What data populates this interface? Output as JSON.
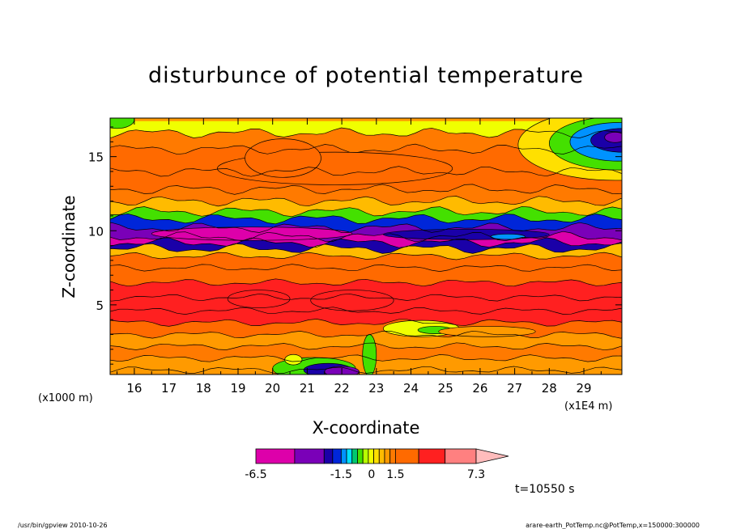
{
  "chart_data": {
    "type": "heatmap",
    "title": "disturbunce of potential temperature",
    "xlabel": "X-coordinate",
    "ylabel": "Z-coordinate",
    "x_unit_label": "(x1E4 m)",
    "y_unit_label": "(x1000 m)",
    "xlim": [
      15.3,
      30.1
    ],
    "ylim": [
      0.3,
      17.6
    ],
    "x_ticks": [
      "16",
      "17",
      "18",
      "19",
      "20",
      "21",
      "22",
      "23",
      "24",
      "25",
      "26",
      "27",
      "28",
      "29"
    ],
    "y_ticks": [
      "5",
      "10",
      "15"
    ],
    "colorbar": {
      "levels": [
        -6.5,
        -5.0,
        -3.5,
        -2.5,
        -1.5,
        -1.2,
        -0.9,
        -0.6,
        -0.3,
        0,
        0.3,
        0.6,
        0.9,
        1.2,
        1.5,
        2.5,
        3.5,
        5.0,
        7.3
      ],
      "colors": [
        "#dd00aa",
        "#7a00b8",
        "#1a00a8",
        "#0026d9",
        "#0092ff",
        "#00e0ff",
        "#00c870",
        "#44e000",
        "#b8ff00",
        "#f0ff00",
        "#ffe000",
        "#ffbb00",
        "#ff9a00",
        "#ff7a00",
        "#ff6a00",
        "#ff2020",
        "#ff8080",
        "#ffbcbc"
      ],
      "tick_labels": [
        "-6.5",
        "-1.5",
        "0",
        "1.5",
        "7.3"
      ]
    },
    "bands": [
      {
        "z": 17.4,
        "v": 0.0
      },
      {
        "z": 16.6,
        "v": 1.2
      },
      {
        "z": 15.5,
        "v": 1.6
      },
      {
        "z": 14.0,
        "v": 1.9
      },
      {
        "z": 12.8,
        "v": 1.4
      },
      {
        "z": 12.0,
        "v": 0.7
      },
      {
        "z": 11.3,
        "v": -0.5
      },
      {
        "z": 10.8,
        "v": -1.6
      },
      {
        "z": 10.2,
        "v": -4.0
      },
      {
        "z": 9.6,
        "v": -5.5
      },
      {
        "z": 9.2,
        "v": -3.0
      },
      {
        "z": 8.8,
        "v": 0.8
      },
      {
        "z": 8.3,
        "v": 1.5
      },
      {
        "z": 7.5,
        "v": 2.0
      },
      {
        "z": 6.5,
        "v": 2.7
      },
      {
        "z": 5.5,
        "v": 3.0
      },
      {
        "z": 4.6,
        "v": 2.7
      },
      {
        "z": 3.8,
        "v": 1.8
      },
      {
        "z": 3.0,
        "v": 1.1
      },
      {
        "z": 2.2,
        "v": 1.3
      },
      {
        "z": 1.4,
        "v": 0.9
      },
      {
        "z": 0.6,
        "v": 1.1
      }
    ],
    "time_label": "t=10550 s"
  },
  "footer": {
    "left": "/usr/bin/gpview  2010-10-26",
    "right": "arare-earth_PotTemp.nc@PotTemp,x=150000:300000"
  }
}
